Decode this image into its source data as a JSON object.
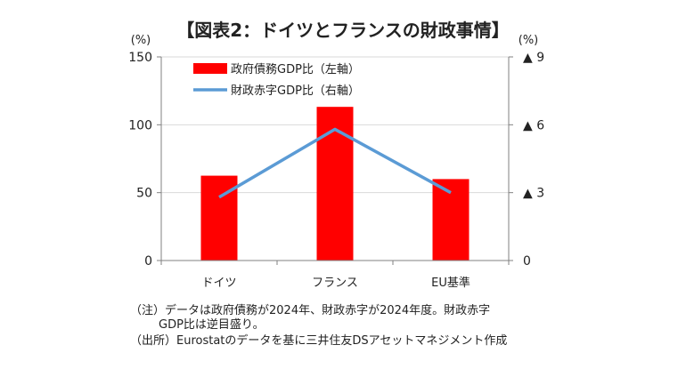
{
  "title": "【図表2：ドイツとフランスの財政事情】",
  "chart_data": {
    "type": "bar",
    "categories": [
      "ドイツ",
      "フランス",
      "EU基準"
    ],
    "series": [
      {
        "name": "政府債務GDP比（左軸）",
        "kind": "bar",
        "axis": "left",
        "color": "#ff0000",
        "values": [
          62.5,
          113.2,
          60
        ]
      },
      {
        "name": "財政赤字GDP比（右軸）",
        "kind": "line",
        "axis": "right",
        "color": "#5b9bd5",
        "values": [
          2.8,
          5.8,
          3.0
        ]
      }
    ],
    "left_axis": {
      "unit_label": "(%)",
      "ylim": [
        0,
        150
      ],
      "ticks": [
        0,
        50,
        100,
        150
      ],
      "tick_labels": [
        "0",
        "50",
        "100",
        "150"
      ]
    },
    "right_axis": {
      "unit_label": "(%)",
      "ylim": [
        0,
        9
      ],
      "ticks": [
        0,
        3,
        6,
        9
      ],
      "tick_labels": [
        "0",
        "▲ 3",
        "▲ 6",
        "▲ 9"
      ]
    },
    "grid": true,
    "legend_position": "top-left"
  },
  "notes": [
    "（注）データは政府債務が2024年、財政赤字が2024年度。財政赤字",
    "GDP比は逆目盛り。",
    "（出所）Eurostatのデータを基に三井住友DSアセットマネジメント作成"
  ]
}
